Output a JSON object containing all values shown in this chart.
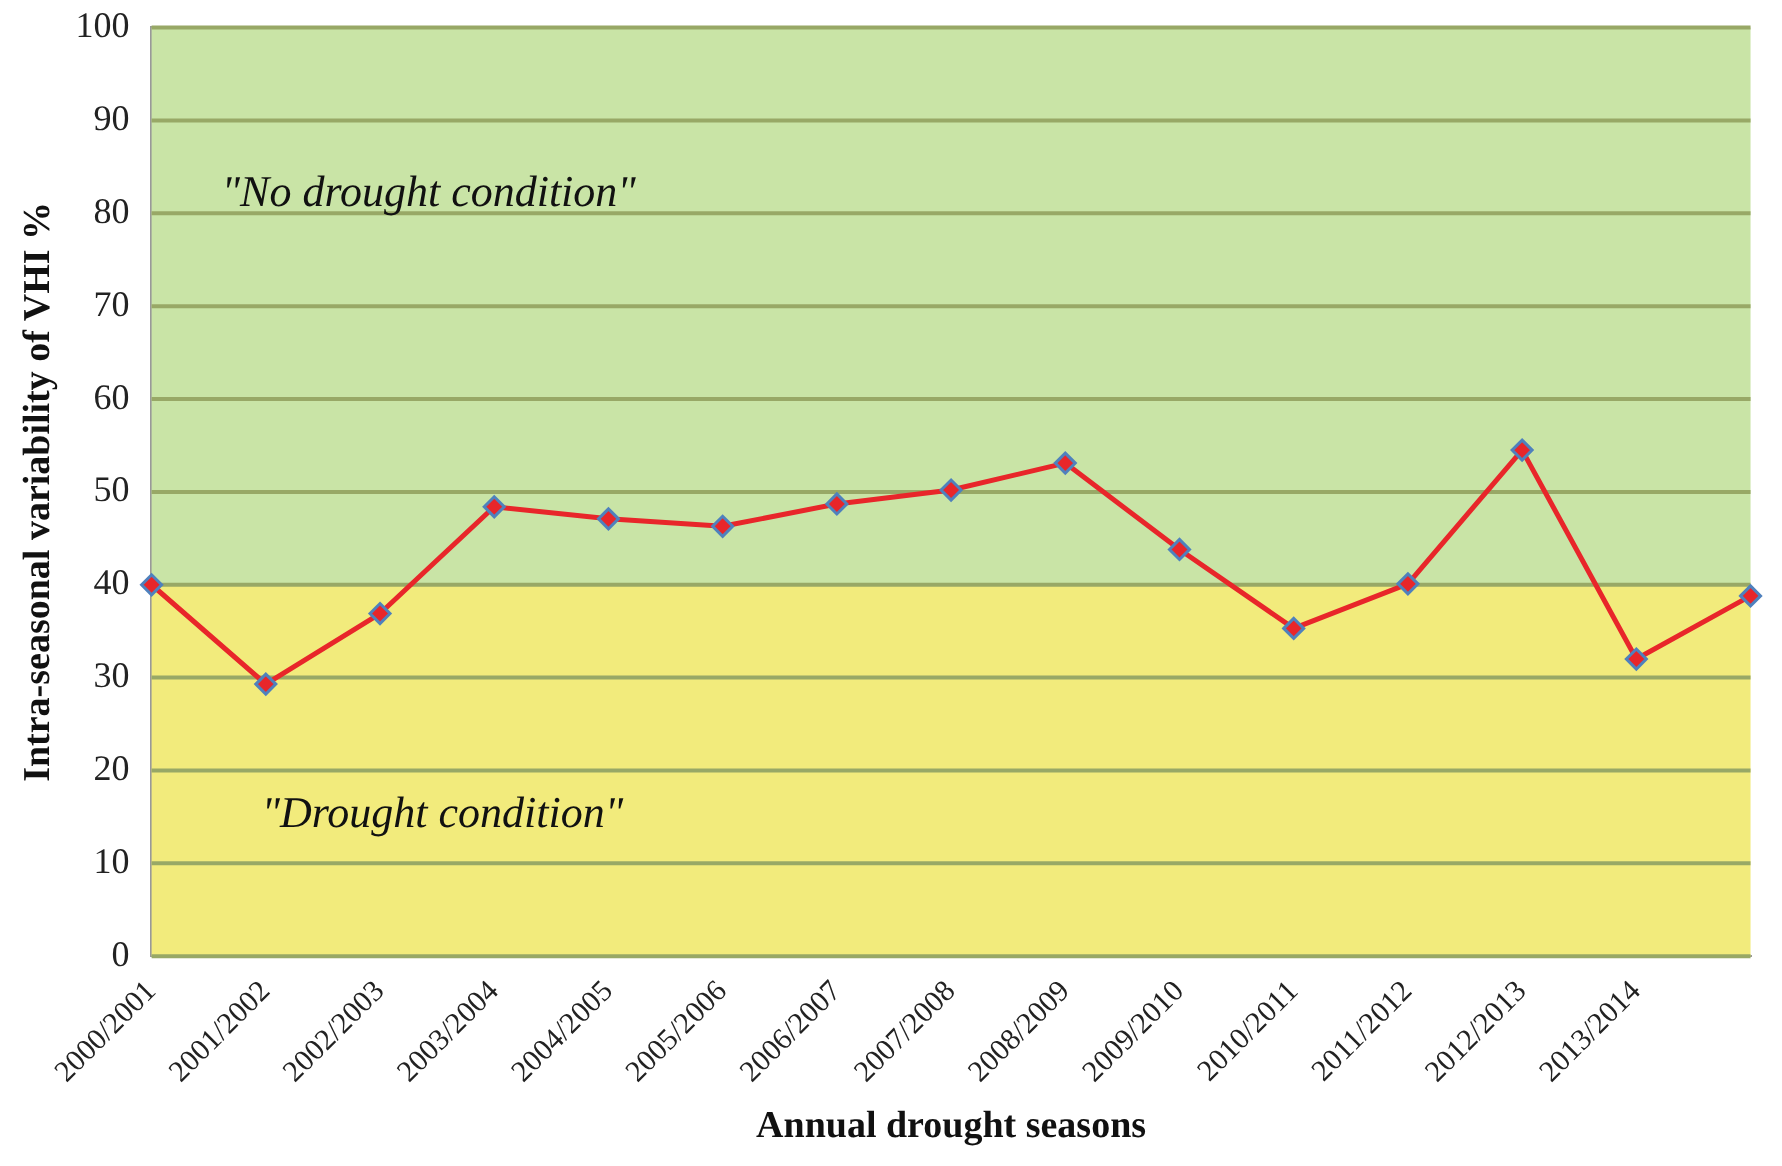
{
  "chart_data": {
    "type": "line",
    "xlabel": "Annual drought seasons",
    "ylabel": "Intra-seasonal variability of VHI %",
    "categories": [
      "2000/2001",
      "2001/2002",
      "2002/2003",
      "2003/2004",
      "2004/2005",
      "2005/2006",
      "2006/2007",
      "2007/2008",
      "2008/2009",
      "2009/2010",
      "2010/2011",
      "2011/2012",
      "2012/2013",
      "2013/2014",
      null
    ],
    "series": [
      {
        "color": "#e8262a",
        "values": [
          40,
          29.3,
          36.9,
          48.4,
          47.1,
          46.3,
          48.7,
          50.2,
          53.1,
          43.8,
          35.3,
          40.1,
          54.5,
          32,
          38.8
        ]
      }
    ],
    "ylim": [
      0,
      100
    ],
    "yticks": [
      0,
      10,
      20,
      30,
      40,
      50,
      60,
      70,
      80,
      90,
      100
    ],
    "bands": [
      {
        "axis": "y",
        "from": 0,
        "to": 40,
        "label": "\"Drought condition\"",
        "color": "#f2eb7c"
      },
      {
        "axis": "y",
        "from": 40,
        "to": 100,
        "label": "\"No drought condition\"",
        "color": "#c9e4a6"
      }
    ],
    "grid": "y",
    "marker": "diamond",
    "line_style": "solid",
    "legend": false
  }
}
